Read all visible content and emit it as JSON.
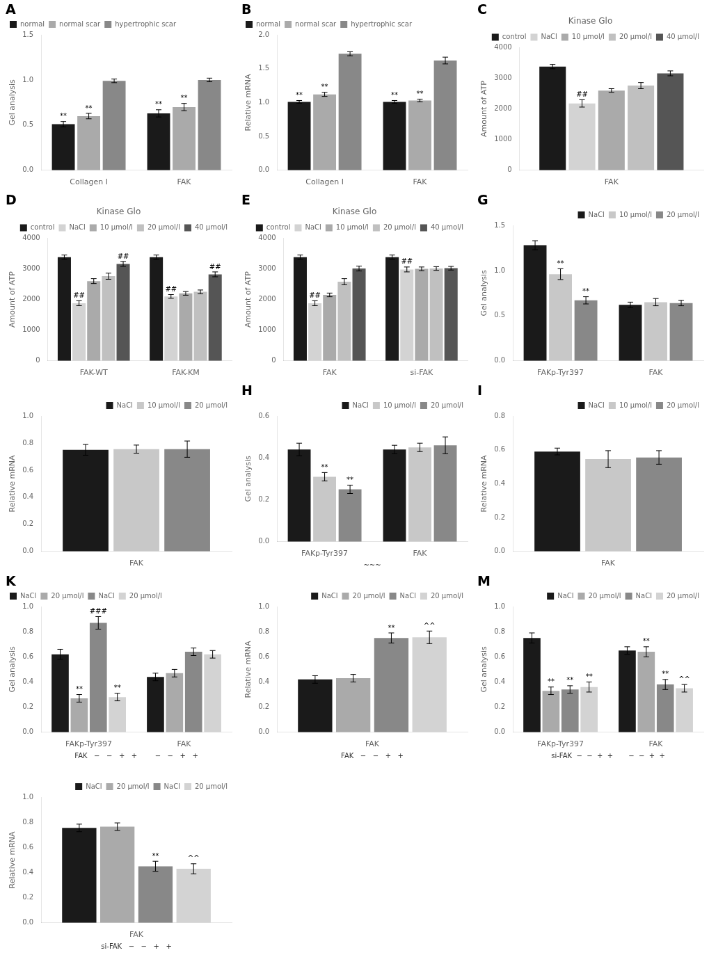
{
  "chart_data": [
    {
      "type": "bar",
      "panel": "A",
      "categories": [
        "Collagen I",
        "FAK"
      ],
      "series": [
        {
          "name": "normal",
          "color": "#1a1a1a",
          "values": [
            0.51,
            0.63
          ],
          "errors": [
            0.03,
            0.04
          ],
          "annotations": [
            "**",
            "**"
          ]
        },
        {
          "name": "normal scar",
          "color": "#aaaaaa",
          "values": [
            0.6,
            0.7
          ],
          "errors": [
            0.03,
            0.04
          ],
          "annotations": [
            "**",
            "**"
          ]
        },
        {
          "name": "hypertrophic scar",
          "color": "#888888",
          "values": [
            0.99,
            1.0
          ],
          "errors": [
            0.02,
            0.02
          ]
        }
      ],
      "ylabel": "Gel analysis",
      "ylim": [
        0.0,
        1.5
      ],
      "yticks": [
        {
          "value": 0.0,
          "label": "0.0"
        },
        0.5,
        {
          "value": 1.0,
          "label": "1.0"
        },
        1.5
      ],
      "legend": "upper left",
      "grid": false
    },
    {
      "type": "bar",
      "panel": "B",
      "categories": [
        "Collagen I",
        "FAK"
      ],
      "series": [
        {
          "name": "normal",
          "color": "#1a1a1a",
          "values": [
            1.01,
            1.01
          ],
          "errors": [
            0.02,
            0.02
          ],
          "annotations": [
            "**",
            "**"
          ]
        },
        {
          "name": "normal scar",
          "color": "#aaaaaa",
          "values": [
            1.12,
            1.03
          ],
          "errors": [
            0.03,
            0.02
          ],
          "annotations": [
            "**",
            "**"
          ]
        },
        {
          "name": "hypertrophic scar",
          "color": "#888888",
          "values": [
            1.72,
            1.62
          ],
          "errors": [
            0.03,
            0.05
          ]
        }
      ],
      "ylabel": "Relative mRNA",
      "ylim": [
        0.0,
        2.0
      ],
      "yticks": [
        {
          "value": 0.0,
          "label": "0.0"
        },
        0.5,
        {
          "value": 1.0,
          "label": "1.0"
        },
        1.5,
        {
          "value": 2.0,
          "label": "2.0"
        }
      ],
      "legend": "upper left",
      "grid": false
    },
    {
      "type": "bar",
      "panel": "C",
      "title": "Kinase Glo",
      "categories": [
        "FAK"
      ],
      "series": [
        {
          "name": "control",
          "color": "#1a1a1a",
          "values": [
            3380
          ],
          "errors": [
            70
          ]
        },
        {
          "name": "NaCl",
          "color": "#d3d3d3",
          "values": [
            2180
          ],
          "errors": [
            120
          ],
          "annotations": [
            "##"
          ]
        },
        {
          "name": "10 μmol/l",
          "color": "#aaaaaa",
          "values": [
            2600
          ],
          "errors": [
            60
          ]
        },
        {
          "name": "20 μmol/l",
          "color": "#c0c0c0",
          "values": [
            2760
          ],
          "errors": [
            100
          ]
        },
        {
          "name": "40 μmol/l",
          "color": "#555555",
          "values": [
            3160
          ],
          "errors": [
            80
          ]
        }
      ],
      "ylabel": "Amount of ATP",
      "ylim": [
        0,
        4000
      ],
      "yticks": [
        0,
        1000,
        2000,
        3000,
        4000
      ],
      "legend": "upper right",
      "grid": false
    },
    {
      "type": "bar",
      "panel": "D",
      "title": "Kinase Glo",
      "categories": [
        "FAK-WT",
        "FAK-KM"
      ],
      "series": [
        {
          "name": "control",
          "color": "#1a1a1a",
          "values": [
            3380,
            3380
          ],
          "errors": [
            70,
            70
          ]
        },
        {
          "name": "NaCl",
          "color": "#d3d3d3",
          "values": [
            1880,
            2100
          ],
          "errors": [
            80,
            60
          ],
          "annotations": [
            "##",
            "##"
          ]
        },
        {
          "name": "10 μmol/l",
          "color": "#aaaaaa",
          "values": [
            2600,
            2200
          ],
          "errors": [
            80,
            60
          ]
        },
        {
          "name": "20 μmol/l",
          "color": "#c0c0c0",
          "values": [
            2760,
            2250
          ],
          "errors": [
            100,
            60
          ]
        },
        {
          "name": "40 μmol/l",
          "color": "#555555",
          "values": [
            3160,
            2820
          ],
          "errors": [
            80,
            80
          ],
          "annotations": [
            "##",
            "##"
          ]
        }
      ],
      "ylabel": "Amount of ATP",
      "ylim": [
        0,
        4000
      ],
      "yticks": [
        0,
        1000,
        2000,
        3000,
        4000
      ],
      "legend": "upper right",
      "grid": false
    },
    {
      "type": "bar",
      "panel": "E",
      "title": "Kinase Glo",
      "categories": [
        "FAK",
        "si-FAK"
      ],
      "series": [
        {
          "name": "control",
          "color": "#1a1a1a",
          "values": [
            3380,
            3380
          ],
          "errors": [
            70,
            70
          ]
        },
        {
          "name": "NaCl",
          "color": "#d3d3d3",
          "values": [
            1880,
            2980
          ],
          "errors": [
            80,
            80
          ],
          "annotations": [
            "##",
            "##"
          ]
        },
        {
          "name": "10 μmol/l",
          "color": "#aaaaaa",
          "values": [
            2150,
            3000
          ],
          "errors": [
            60,
            60
          ]
        },
        {
          "name": "20 μmol/l",
          "color": "#c0c0c0",
          "values": [
            2580,
            3010
          ],
          "errors": [
            100,
            60
          ]
        },
        {
          "name": "40 μmol/l",
          "color": "#555555",
          "values": [
            3010,
            3020
          ],
          "errors": [
            80,
            60
          ]
        }
      ],
      "ylabel": "Amount of ATP",
      "ylim": [
        0,
        4000
      ],
      "yticks": [
        0,
        1000,
        2000,
        3000,
        4000
      ],
      "legend": "upper right",
      "grid": false
    },
    {
      "type": "bar",
      "panel": "G",
      "categories": [
        "FAKp-Tyr397",
        "FAK"
      ],
      "series": [
        {
          "name": "NaCl",
          "color": "#1a1a1a",
          "values": [
            1.28,
            0.62
          ],
          "errors": [
            0.05,
            0.03
          ]
        },
        {
          "name": "10 μmol/l",
          "color": "#c8c8c8",
          "values": [
            0.96,
            0.65
          ],
          "errors": [
            0.06,
            0.04
          ],
          "annotations": [
            "**",
            null
          ]
        },
        {
          "name": "20 μmol/l",
          "color": "#888888",
          "values": [
            0.67,
            0.64
          ],
          "errors": [
            0.04,
            0.03
          ],
          "annotations": [
            "**",
            null
          ]
        }
      ],
      "ylabel": "Gel analysis",
      "ylim": [
        0.0,
        1.5
      ],
      "yticks": [
        {
          "value": 0.0,
          "label": "0.0"
        },
        0.5,
        {
          "value": 1.0,
          "label": "1.0"
        },
        1.5
      ],
      "legend": "upper right",
      "grid": false
    },
    {
      "type": "bar",
      "categories": [
        "FAK"
      ],
      "series": [
        {
          "name": "NaCl",
          "color": "#1a1a1a",
          "values": [
            0.75
          ],
          "errors": [
            0.04
          ]
        },
        {
          "name": "10 μmol/l",
          "color": "#c8c8c8",
          "values": [
            0.755
          ],
          "errors": [
            0.03
          ]
        },
        {
          "name": "20 μmol/l",
          "color": "#888888",
          "values": [
            0.755
          ],
          "errors": [
            0.06
          ]
        }
      ],
      "ylabel": "Relative mRNA",
      "ylim": [
        0.0,
        1.0
      ],
      "yticks": [
        {
          "value": 0.0,
          "label": "0.0"
        },
        0.2,
        0.4,
        0.6,
        0.8,
        {
          "value": 1.0,
          "label": "1.0"
        }
      ],
      "legend": "upper right",
      "grid": false
    },
    {
      "type": "bar",
      "panel": "H",
      "categories": [
        "FAKp-Tyr397",
        "FAK"
      ],
      "series": [
        {
          "name": "NaCl",
          "color": "#1a1a1a",
          "values": [
            0.44,
            0.44
          ],
          "errors": [
            0.03,
            0.02
          ]
        },
        {
          "name": "10 μmol/l",
          "color": "#c8c8c8",
          "values": [
            0.31,
            0.45
          ],
          "errors": [
            0.02,
            0.02
          ],
          "annotations": [
            "**",
            null
          ]
        },
        {
          "name": "20 μmol/l",
          "color": "#888888",
          "values": [
            0.25,
            0.46
          ],
          "errors": [
            0.02,
            0.04
          ],
          "annotations": [
            "**",
            null
          ]
        }
      ],
      "ylabel": "Gel analysis",
      "ylim": [
        0.0,
        0.6
      ],
      "yticks": [
        {
          "value": 0.0,
          "label": "0.0"
        },
        0.2,
        0.4,
        0.6
      ],
      "x_annotation": "~~~",
      "legend": "upper right",
      "grid": false
    },
    {
      "type": "bar",
      "panel": "I",
      "categories": [
        "FAK"
      ],
      "series": [
        {
          "name": "NaCl",
          "color": "#1a1a1a",
          "values": [
            0.59
          ],
          "errors": [
            0.02
          ]
        },
        {
          "name": "10 μmol/l",
          "color": "#c8c8c8",
          "values": [
            0.545
          ],
          "errors": [
            0.05
          ]
        },
        {
          "name": "20 μmol/l",
          "color": "#888888",
          "values": [
            0.555
          ],
          "errors": [
            0.04
          ]
        }
      ],
      "ylabel": "Relative mRNA",
      "ylim": [
        0.0,
        0.8
      ],
      "yticks": [
        {
          "value": 0.0,
          "label": "0.0"
        },
        0.2,
        0.4,
        0.6,
        0.8
      ],
      "legend": "upper right",
      "grid": false
    },
    {
      "type": "bar",
      "panel": "K",
      "categories": [
        "FAKp-Tyr397",
        "FAK"
      ],
      "series": [
        {
          "name": "NaCl",
          "color": "#1a1a1a",
          "values": [
            0.62,
            0.44
          ],
          "errors": [
            0.04,
            0.03
          ]
        },
        {
          "name": "20 μmol/l",
          "color": "#aaaaaa",
          "values": [
            0.27,
            0.47
          ],
          "errors": [
            0.03,
            0.03
          ],
          "annotations": [
            "**",
            null
          ]
        },
        {
          "name": "NaCl",
          "color": "#888888",
          "values": [
            0.87,
            0.64
          ],
          "errors": [
            0.05,
            0.03
          ],
          "annotations": [
            "###",
            null
          ]
        },
        {
          "name": "20 μmol/l",
          "color": "#d3d3d3",
          "values": [
            0.28,
            0.62
          ],
          "errors": [
            0.03,
            0.03
          ],
          "annotations": [
            "**",
            null
          ]
        }
      ],
      "ylabel": "Gel analysis",
      "ylim": [
        0.0,
        1.0
      ],
      "yticks": [
        {
          "value": 0.0,
          "label": "0.0"
        },
        0.2,
        0.4,
        0.6,
        0.8,
        {
          "value": 1.0,
          "label": "1.0"
        }
      ],
      "x_annotation": "FAK   −   −   +   +        −   −   +   +",
      "legend": "upper left",
      "grid": false
    },
    {
      "type": "bar",
      "categories": [
        "FAK"
      ],
      "series": [
        {
          "name": "NaCl",
          "color": "#1a1a1a",
          "values": [
            0.42
          ],
          "errors": [
            0.03
          ]
        },
        {
          "name": "20 μmol/l",
          "color": "#aaaaaa",
          "values": [
            0.43
          ],
          "errors": [
            0.03
          ]
        },
        {
          "name": "NaCl",
          "color": "#888888",
          "values": [
            0.75
          ],
          "errors": [
            0.04
          ],
          "annotations": [
            "**"
          ]
        },
        {
          "name": "20 μmol/l",
          "color": "#d3d3d3",
          "values": [
            0.755
          ],
          "errors": [
            0.05
          ],
          "annotations": [
            "^^"
          ]
        }
      ],
      "ylabel": "Relative mRNA",
      "ylim": [
        0.0,
        1.0
      ],
      "yticks": [
        {
          "value": 0.0,
          "label": "0.0"
        },
        0.2,
        0.4,
        0.6,
        0.8,
        {
          "value": 1.0,
          "label": "1.0"
        }
      ],
      "x_annotation": "FAK   −   −   +   +",
      "legend": "upper right",
      "grid": false
    },
    {
      "type": "bar",
      "panel": "M",
      "categories": [
        "FAKp-Tyr397",
        "FAK"
      ],
      "series": [
        {
          "name": "NaCl",
          "color": "#1a1a1a",
          "values": [
            0.75,
            0.65
          ],
          "errors": [
            0.04,
            0.03
          ]
        },
        {
          "name": "20 μmol/l",
          "color": "#aaaaaa",
          "values": [
            0.33,
            0.64
          ],
          "errors": [
            0.03,
            0.04
          ],
          "annotations": [
            "**",
            "**"
          ]
        },
        {
          "name": "NaCl",
          "color": "#888888",
          "values": [
            0.34,
            0.38
          ],
          "errors": [
            0.03,
            0.04
          ],
          "annotations": [
            "**",
            "**"
          ]
        },
        {
          "name": "20 μmol/l",
          "color": "#d3d3d3",
          "values": [
            0.36,
            0.35
          ],
          "errors": [
            0.04,
            0.03
          ],
          "annotations": [
            "**",
            "^^"
          ]
        }
      ],
      "ylabel": "Gel analysis",
      "ylim": [
        0.0,
        1.0
      ],
      "yticks": [
        {
          "value": 0.0,
          "label": "0.0"
        },
        0.2,
        0.4,
        0.6,
        0.8,
        {
          "value": 1.0,
          "label": "1.0"
        }
      ],
      "x_annotation": "si-FAK  −  −  +  +       −  −  +  +",
      "legend": "upper right",
      "grid": false
    },
    {
      "type": "bar",
      "categories": [
        "FAK"
      ],
      "series": [
        {
          "name": "NaCl",
          "color": "#1a1a1a",
          "values": [
            0.755
          ],
          "errors": [
            0.03
          ]
        },
        {
          "name": "20 μmol/l",
          "color": "#aaaaaa",
          "values": [
            0.765
          ],
          "errors": [
            0.03
          ]
        },
        {
          "name": "NaCl",
          "color": "#888888",
          "values": [
            0.45
          ],
          "errors": [
            0.04
          ],
          "annotations": [
            "**"
          ]
        },
        {
          "name": "20 μmol/l",
          "color": "#d3d3d3",
          "values": [
            0.43
          ],
          "errors": [
            0.04
          ],
          "annotations": [
            "^^"
          ]
        }
      ],
      "ylabel": "Relative mRNA",
      "ylim": [
        0.0,
        1.0
      ],
      "yticks": [
        {
          "value": 0.0,
          "label": "0.0"
        },
        0.2,
        0.4,
        0.6,
        0.8,
        {
          "value": 1.0,
          "label": "1.0"
        }
      ],
      "x_annotation": "si-FAK   −   −   +   +",
      "legend": "upper right",
      "grid": false
    }
  ]
}
